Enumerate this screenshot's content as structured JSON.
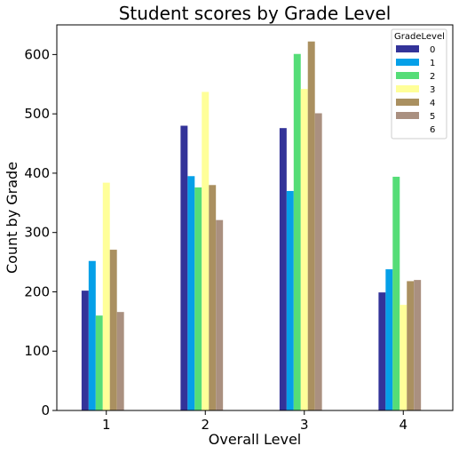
{
  "chart_data": {
    "type": "bar",
    "title": "Student scores by Grade Level",
    "xlabel": "Overall Level",
    "ylabel": "Count by Grade",
    "categories": [
      "1",
      "2",
      "3",
      "4"
    ],
    "ylim": [
      0,
      650
    ],
    "yticks": [
      0,
      100,
      200,
      300,
      400,
      500,
      600
    ],
    "grid": false,
    "legend": {
      "title": "GradeLevel",
      "placement": "top-right"
    },
    "series": [
      {
        "name": "0",
        "color": "#333399",
        "values": [
          202,
          480,
          476,
          199
        ]
      },
      {
        "name": "1",
        "color": "#05a0e8",
        "values": [
          252,
          395,
          370,
          238
        ]
      },
      {
        "name": "2",
        "color": "#55dd77",
        "values": [
          160,
          376,
          601,
          394
        ]
      },
      {
        "name": "3",
        "color": "#ffff99",
        "values": [
          384,
          537,
          542,
          178
        ]
      },
      {
        "name": "4",
        "color": "#aa9060",
        "values": [
          271,
          380,
          622,
          218
        ]
      },
      {
        "name": "5",
        "color": "#aa9080",
        "values": [
          166,
          321,
          501,
          220
        ]
      },
      {
        "name": "6",
        "color": "#ffffff",
        "values": [
          0,
          0,
          0,
          0
        ]
      }
    ]
  }
}
